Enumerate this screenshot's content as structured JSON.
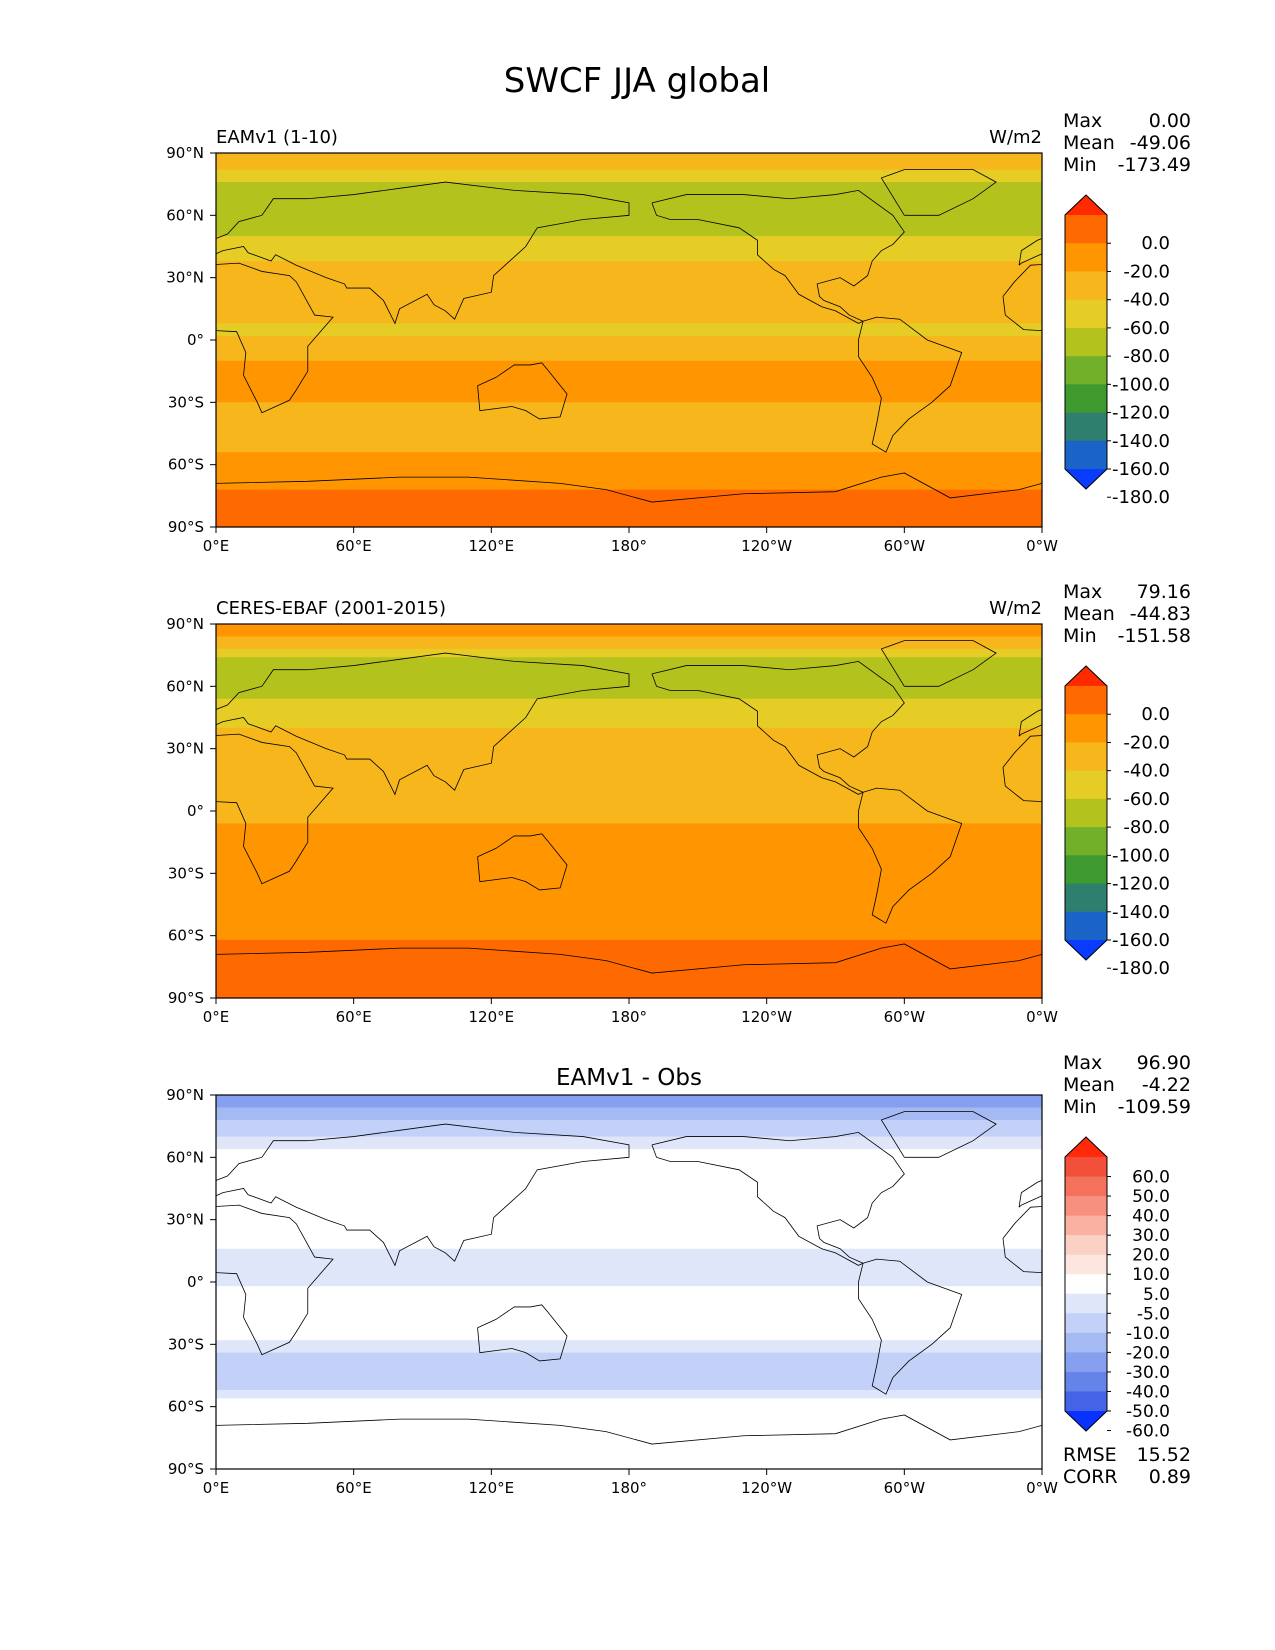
{
  "figure": {
    "title": "SWCF JJA global"
  },
  "chart_data": [
    {
      "type": "heatmap",
      "panel_label": "EAMv1 (1-10)",
      "units": "W/m2",
      "stats": [
        {
          "label": "Max",
          "value": "0.00"
        },
        {
          "label": "Mean",
          "value": "-49.06"
        },
        {
          "label": "Min",
          "value": "-173.49"
        }
      ],
      "colorbar": {
        "levels": [
          0.0,
          -20.0,
          -40.0,
          -60.0,
          -80.0,
          -100.0,
          -120.0,
          -140.0,
          -160.0,
          -180.0
        ],
        "labels": [
          "0.0",
          "-20.0",
          "-40.0",
          "-60.0",
          "-80.0",
          "-100.0",
          "-120.0",
          "-140.0",
          "-160.0",
          "-180.0"
        ],
        "colors": [
          "#ff2a00",
          "#ff6a00",
          "#ff9500",
          "#f7b71c",
          "#e6cd26",
          "#b4c21e",
          "#72b02a",
          "#3e9a2e",
          "#2f7f6e",
          "#1a64c8",
          "#0a3cff"
        ],
        "extend": "both"
      },
      "x_ticks": [
        "0°E",
        "60°E",
        "120°E",
        "180°",
        "120°W",
        "60°W",
        "0°W"
      ],
      "y_ticks": [
        "90°N",
        "60°N",
        "30°N",
        "0°",
        "30°S",
        "60°S",
        "90°S"
      ],
      "lon_range": [
        0,
        360
      ],
      "lat_range": [
        -90,
        90
      ],
      "zonal_profile": [
        {
          "lat": 85,
          "value": -50
        },
        {
          "lat": 72,
          "value": -95
        },
        {
          "lat": 58,
          "value": -90
        },
        {
          "lat": 45,
          "value": -75
        },
        {
          "lat": 30,
          "value": -40
        },
        {
          "lat": 15,
          "value": -50
        },
        {
          "lat": 5,
          "value": -65
        },
        {
          "lat": -5,
          "value": -45
        },
        {
          "lat": -15,
          "value": -35
        },
        {
          "lat": -25,
          "value": -35
        },
        {
          "lat": -35,
          "value": -45
        },
        {
          "lat": -48,
          "value": -50
        },
        {
          "lat": -55,
          "value": -38
        },
        {
          "lat": -65,
          "value": -25
        },
        {
          "lat": -78,
          "value": -15
        },
        {
          "lat": -88,
          "value": -15
        }
      ]
    },
    {
      "type": "heatmap",
      "panel_label": "CERES-EBAF (2001-2015)",
      "units": "W/m2",
      "stats": [
        {
          "label": "Max",
          "value": "79.16"
        },
        {
          "label": "Mean",
          "value": "-44.83"
        },
        {
          "label": "Min",
          "value": "-151.58"
        }
      ],
      "colorbar": {
        "levels": [
          0.0,
          -20.0,
          -40.0,
          -60.0,
          -80.0,
          -100.0,
          -120.0,
          -140.0,
          -160.0,
          -180.0
        ],
        "labels": [
          "0.0",
          "-20.0",
          "-40.0",
          "-60.0",
          "-80.0",
          "-100.0",
          "-120.0",
          "-140.0",
          "-160.0",
          "-180.0"
        ],
        "colors": [
          "#ff2a00",
          "#ff6a00",
          "#ff9500",
          "#f7b71c",
          "#e6cd26",
          "#b4c21e",
          "#72b02a",
          "#3e9a2e",
          "#2f7f6e",
          "#1a64c8",
          "#0a3cff"
        ],
        "extend": "both"
      },
      "x_ticks": [
        "0°E",
        "60°E",
        "120°E",
        "180°",
        "120°W",
        "60°W",
        "0°W"
      ],
      "y_ticks": [
        "90°N",
        "60°N",
        "30°N",
        "0°",
        "30°S",
        "60°S",
        "90°S"
      ],
      "lon_range": [
        0,
        360
      ],
      "lat_range": [
        -90,
        90
      ],
      "zonal_profile": [
        {
          "lat": 85,
          "value": -35
        },
        {
          "lat": 72,
          "value": -85
        },
        {
          "lat": 58,
          "value": -85
        },
        {
          "lat": 45,
          "value": -70
        },
        {
          "lat": 30,
          "value": -40
        },
        {
          "lat": 15,
          "value": -45
        },
        {
          "lat": 5,
          "value": -55
        },
        {
          "lat": -5,
          "value": -40
        },
        {
          "lat": -15,
          "value": -30
        },
        {
          "lat": -25,
          "value": -35
        },
        {
          "lat": -35,
          "value": -38
        },
        {
          "lat": -48,
          "value": -35
        },
        {
          "lat": -55,
          "value": -28
        },
        {
          "lat": -65,
          "value": -15
        },
        {
          "lat": -78,
          "value": -5
        },
        {
          "lat": -88,
          "value": -15
        }
      ]
    },
    {
      "type": "heatmap",
      "panel_label": "EAMv1 - Obs",
      "units": "",
      "stats": [
        {
          "label": "Max",
          "value": "96.90"
        },
        {
          "label": "Mean",
          "value": "-4.22"
        },
        {
          "label": "Min",
          "value": "-109.59"
        }
      ],
      "colorbar": {
        "levels": [
          60.0,
          50.0,
          40.0,
          30.0,
          20.0,
          10.0,
          5.0,
          -5.0,
          -10.0,
          -20.0,
          -30.0,
          -40.0,
          -50.0,
          -60.0
        ],
        "labels": [
          "60.0",
          "50.0",
          "40.0",
          "30.0",
          "20.0",
          "10.0",
          "5.0",
          "-5.0",
          "-10.0",
          "-20.0",
          "-30.0",
          "-40.0",
          "-50.0",
          "-60.0"
        ],
        "colors": [
          "#ff2a0a",
          "#f2503a",
          "#f4725c",
          "#f7917e",
          "#f9b1a2",
          "#fbd0c5",
          "#fde6df",
          "#ffffff",
          "#dfe6fa",
          "#c3d0f7",
          "#a5b9f3",
          "#86a0ef",
          "#6683ea",
          "#4563e6",
          "#0a32ff"
        ],
        "extend": "both"
      },
      "x_ticks": [
        "0°E",
        "60°E",
        "120°E",
        "180°",
        "120°W",
        "60°W",
        "0°W"
      ],
      "y_ticks": [
        "90°N",
        "60°N",
        "30°N",
        "0°",
        "30°S",
        "60°S",
        "90°S"
      ],
      "lon_range": [
        0,
        360
      ],
      "lat_range": [
        -90,
        90
      ],
      "rmse": {
        "label": "RMSE",
        "value": "15.52"
      },
      "corr": {
        "label": "CORR",
        "value": "0.89"
      },
      "zonal_profile": [
        {
          "lat": 85,
          "value": -30
        },
        {
          "lat": 72,
          "value": -12
        },
        {
          "lat": 58,
          "value": 0
        },
        {
          "lat": 45,
          "value": 3
        },
        {
          "lat": 30,
          "value": 2
        },
        {
          "lat": 15,
          "value": -5
        },
        {
          "lat": 5,
          "value": -8
        },
        {
          "lat": -5,
          "value": -4
        },
        {
          "lat": -15,
          "value": 0
        },
        {
          "lat": -25,
          "value": -2
        },
        {
          "lat": -35,
          "value": -10
        },
        {
          "lat": -48,
          "value": -14
        },
        {
          "lat": -55,
          "value": -6
        },
        {
          "lat": -65,
          "value": 0
        },
        {
          "lat": -78,
          "value": 0
        },
        {
          "lat": -88,
          "value": 0
        }
      ]
    }
  ]
}
